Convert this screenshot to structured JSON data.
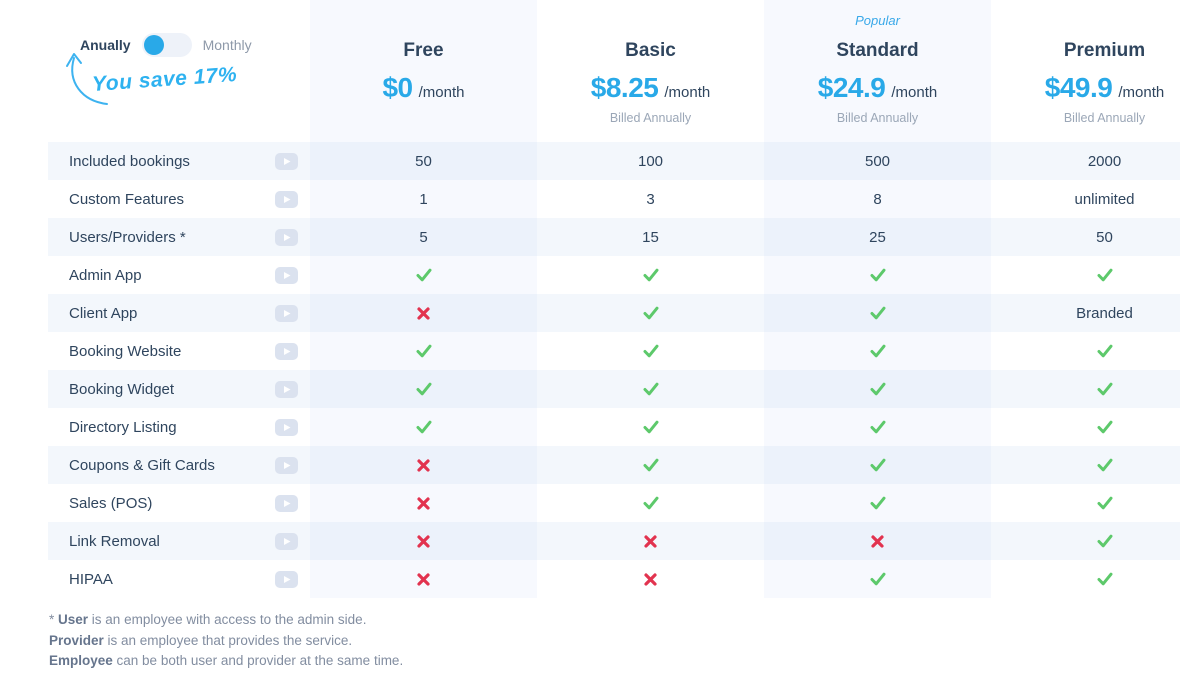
{
  "toggle": {
    "left_label": "Anually",
    "right_label": "Monthly",
    "save_note": "You save 17%",
    "selected": "Anually"
  },
  "plans": [
    {
      "name": "Free",
      "price": "$0",
      "period": "/month",
      "billed": "",
      "badge": ""
    },
    {
      "name": "Basic",
      "price": "$8.25",
      "period": "/month",
      "billed": "Billed Annually",
      "badge": ""
    },
    {
      "name": "Standard",
      "price": "$24.9",
      "period": "/month",
      "billed": "Billed Annually",
      "badge": "Popular"
    },
    {
      "name": "Premium",
      "price": "$49.9",
      "period": "/month",
      "billed": "Billed Annually",
      "badge": ""
    }
  ],
  "rows": [
    {
      "label": "Included bookings",
      "has_video_icon": false,
      "values": [
        "50",
        "100",
        "500",
        "2000"
      ]
    },
    {
      "label": "Custom Features",
      "has_video_icon": true,
      "values": [
        "1",
        "3",
        "8",
        "unlimited"
      ]
    },
    {
      "label": "Users/Providers *",
      "has_video_icon": false,
      "values": [
        "5",
        "15",
        "25",
        "50"
      ]
    },
    {
      "label": "Admin App",
      "has_video_icon": false,
      "values": [
        "check",
        "check",
        "check",
        "check"
      ]
    },
    {
      "label": "Client App",
      "has_video_icon": false,
      "values": [
        "cross",
        "check",
        "check",
        "Branded"
      ]
    },
    {
      "label": "Booking Website",
      "has_video_icon": false,
      "values": [
        "check",
        "check",
        "check",
        "check"
      ]
    },
    {
      "label": "Booking Widget",
      "has_video_icon": false,
      "values": [
        "check",
        "check",
        "check",
        "check"
      ]
    },
    {
      "label": "Directory Listing",
      "has_video_icon": false,
      "values": [
        "check",
        "check",
        "check",
        "check"
      ]
    },
    {
      "label": "Coupons & Gift Cards",
      "has_video_icon": false,
      "values": [
        "cross",
        "check",
        "check",
        "check"
      ]
    },
    {
      "label": "Sales (POS)",
      "has_video_icon": false,
      "values": [
        "cross",
        "check",
        "check",
        "check"
      ]
    },
    {
      "label": "Link Removal",
      "has_video_icon": false,
      "values": [
        "cross",
        "cross",
        "cross",
        "check"
      ]
    },
    {
      "label": "HIPAA",
      "has_video_icon": false,
      "values": [
        "cross",
        "cross",
        "check",
        "check"
      ]
    }
  ],
  "footnotes": [
    {
      "prefix": "* ",
      "bold": "User",
      "rest": " is an employee with access to the admin side."
    },
    {
      "prefix": "",
      "bold": "Provider",
      "rest": " is an employee that provides the service."
    },
    {
      "prefix": "",
      "bold": "Employee",
      "rest": " can be both user and provider at the same time."
    }
  ],
  "icons": {
    "check": "✓",
    "cross": "✕",
    "video_play": "▶",
    "save_arrow": "curved-up-arrow"
  },
  "colors": {
    "accent_blue": "#29a9e8",
    "navy_text": "#2f455e",
    "green_check": "#5dc96b",
    "red_cross": "#e2334f",
    "column_tint": "#f7f9fe",
    "row_tint": "#f3f7fc",
    "row_column_tint": "#ecf2fb",
    "muted_gray": "#9ba7b7"
  }
}
